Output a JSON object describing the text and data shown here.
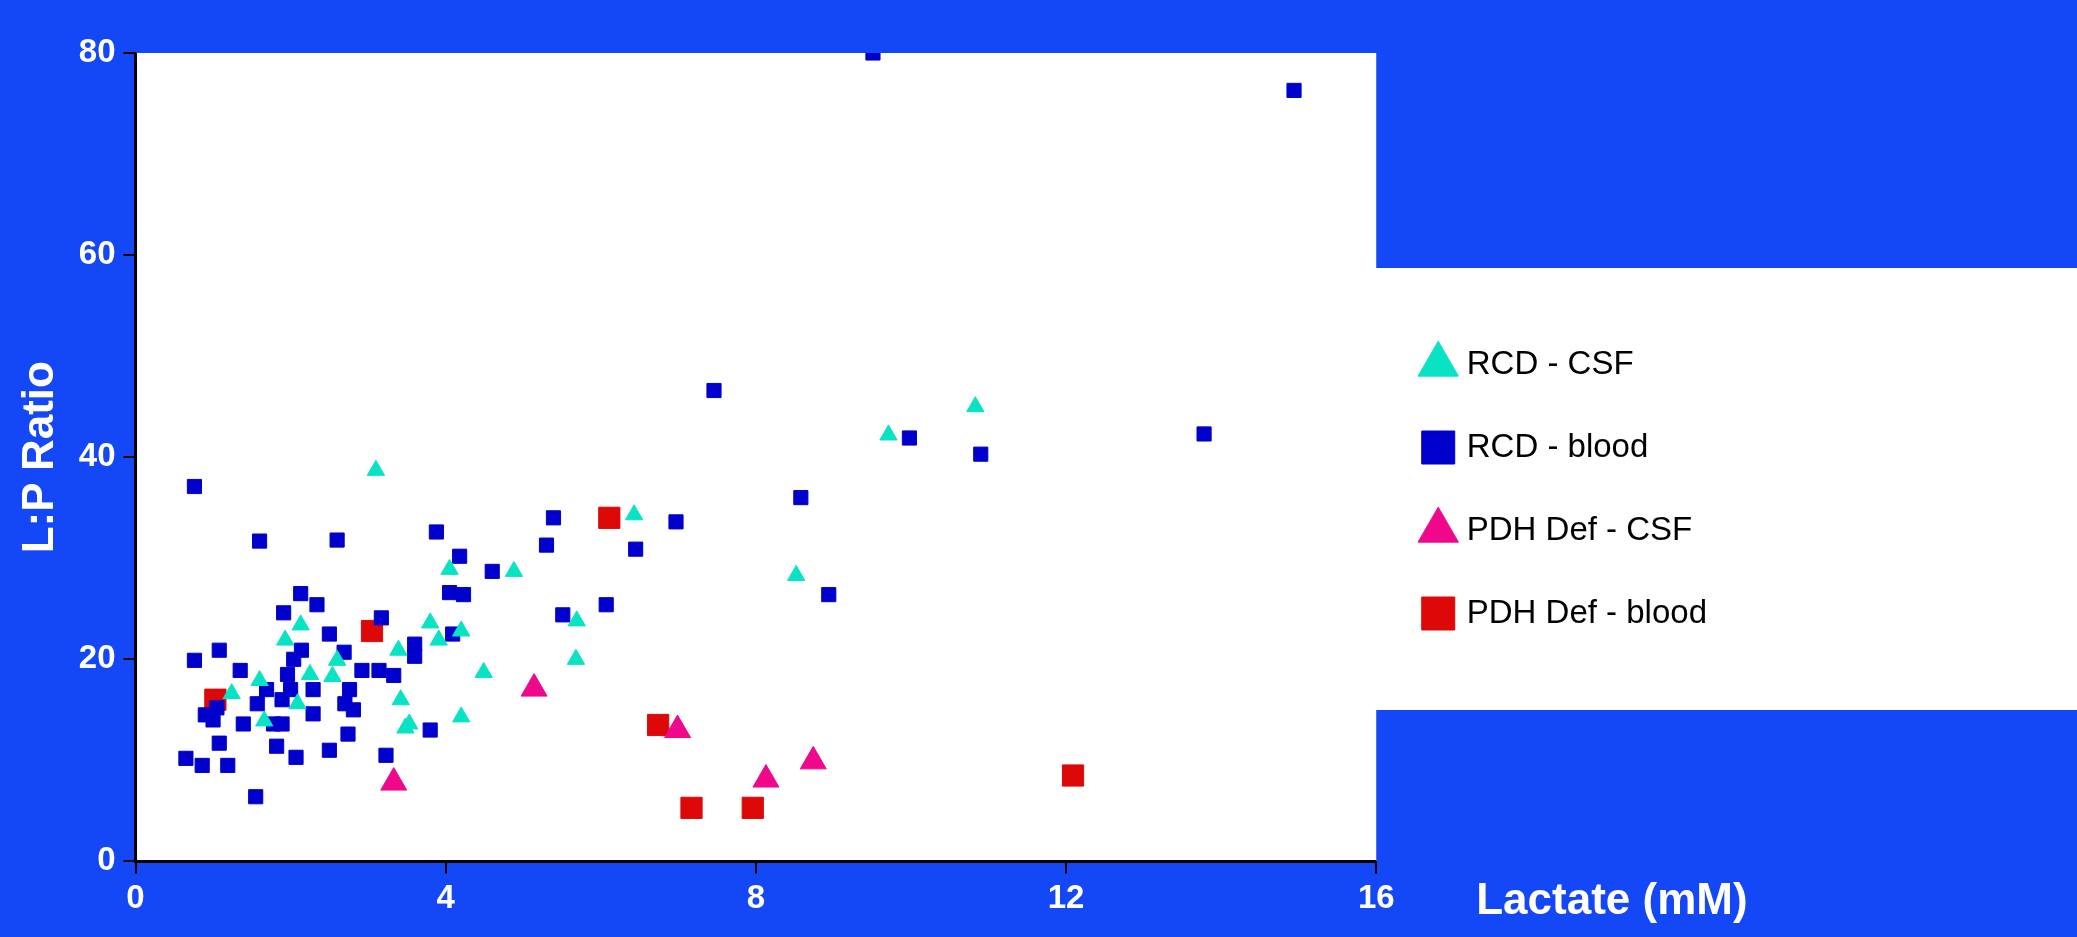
{
  "chart_data": {
    "type": "scatter",
    "xlabel": "Lactate (mM)",
    "ylabel": "L:P Ratio",
    "xlim": [
      0,
      16
    ],
    "xticks": [
      0,
      4,
      8,
      12,
      16
    ],
    "ylim": [
      0,
      80
    ],
    "yticks": [
      0,
      20,
      40,
      60,
      80
    ],
    "grid": false,
    "legend": "right",
    "series": [
      {
        "name": "RCD - CSF",
        "color": "#08e3c4",
        "marker": "triangle",
        "x": [
          3.1,
          1.93,
          2.13,
          1.6,
          2.25,
          2.54,
          2.6,
          1.66,
          2.09,
          1.24,
          3.39,
          3.42,
          3.48,
          3.53,
          3.8,
          3.91,
          4.05,
          4.2,
          4.2,
          4.49,
          4.88,
          5.69,
          5.68,
          6.43,
          8.52,
          9.71,
          10.83
        ],
        "values": [
          38.7,
          21.9,
          23.4,
          17.9,
          18.5,
          18.3,
          19.9,
          13.9,
          15.6,
          16.6,
          20.9,
          16.0,
          13.2,
          13.6,
          23.6,
          21.9,
          28.9,
          22.8,
          14.3,
          18.7,
          28.7,
          23.8,
          20.0,
          34.3,
          28.3,
          42.2,
          45.0
        ]
      },
      {
        "name": "RCD - blood",
        "color": "#0000cc",
        "marker": "square",
        "x": [
          0.76,
          0.76,
          1.08,
          0.65,
          0.86,
          1.19,
          1.08,
          0.9,
          1.05,
          1.0,
          1.35,
          1.39,
          1.57,
          1.55,
          1.6,
          1.91,
          2.13,
          2.34,
          1.96,
          2.04,
          2.14,
          1.69,
          1.89,
          2.0,
          1.78,
          1.89,
          2.07,
          1.82,
          2.29,
          2.29,
          2.5,
          2.5,
          2.6,
          2.69,
          2.7,
          2.76,
          2.81,
          2.74,
          2.92,
          3.14,
          3.17,
          3.23,
          3.33,
          3.6,
          3.6,
          3.8,
          3.88,
          4.05,
          4.09,
          4.18,
          4.23,
          4.6,
          5.3,
          5.39,
          5.51,
          6.07,
          6.45,
          6.97,
          7.46,
          8.58,
          8.94,
          9.51,
          9.98,
          10.9,
          13.78,
          14.94
        ],
        "values": [
          37.1,
          19.9,
          20.9,
          10.2,
          9.5,
          9.5,
          11.7,
          14.5,
          15.2,
          14.0,
          18.9,
          13.6,
          15.6,
          6.4,
          31.7,
          24.6,
          26.5,
          25.4,
          18.5,
          20.0,
          20.9,
          17.0,
          16.0,
          17.0,
          13.6,
          13.6,
          10.3,
          11.4,
          17.0,
          14.6,
          22.5,
          11.0,
          31.8,
          20.7,
          15.6,
          17.0,
          15.0,
          12.6,
          18.9,
          18.9,
          24.1,
          10.5,
          18.4,
          21.5,
          20.3,
          13.0,
          32.6,
          26.6,
          22.5,
          30.2,
          26.4,
          28.7,
          31.3,
          34.0,
          24.4,
          25.4,
          30.9,
          33.6,
          46.6,
          36.0,
          26.4,
          80.0,
          41.9,
          40.3,
          42.3,
          76.3
        ]
      },
      {
        "name": "PDH Def - CSF",
        "color": "#f0088c",
        "marker": "triangle",
        "x": [
          3.33,
          5.14,
          6.99,
          8.13,
          8.74
        ],
        "values": [
          7.8,
          17.1,
          13.0,
          8.1,
          9.9
        ]
      },
      {
        "name": "PDH Def - blood",
        "color": "#dd0808",
        "marker": "square",
        "x": [
          1.03,
          3.05,
          6.11,
          6.74,
          7.17,
          7.96,
          12.09
        ],
        "values": [
          16.0,
          22.8,
          34.0,
          13.5,
          5.3,
          5.3,
          8.5
        ]
      }
    ]
  }
}
